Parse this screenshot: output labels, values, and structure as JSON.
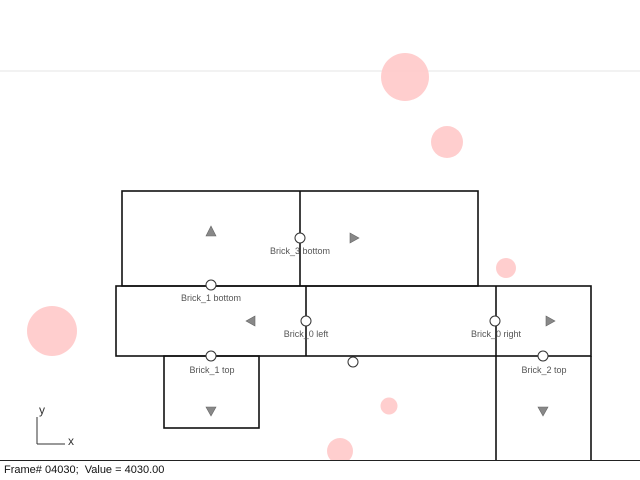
{
  "colors": {
    "ball": "#ffc9c9",
    "brick_stroke": "#111111",
    "arrow": "#888888",
    "background": "#ffffff"
  },
  "bricks": [
    {
      "id": "brick-3",
      "name": "Brick_3"
    },
    {
      "id": "brick-1",
      "name": "Brick_1"
    },
    {
      "id": "brick-0",
      "name": "Brick_0"
    },
    {
      "id": "brick-2",
      "name": "Brick_2"
    },
    {
      "id": "brick-1-stub",
      "name": "Brick_1"
    }
  ],
  "joint_labels": {
    "brick3_bottom": "Brick_3 bottom",
    "brick1_bottom": "Brick_1 bottom",
    "brick0_left": "Brick_0 left",
    "brick0_right": "Brick_0 right",
    "brick1_top": "Brick_1 top",
    "brick2_top": "Brick_2 top"
  },
  "axes": {
    "x": "x",
    "y": "y"
  },
  "status": {
    "frame_label": "Frame# ",
    "frame_number": "04030",
    "separator": ";  ",
    "value_label": "Value = ",
    "value": "4030.00"
  }
}
